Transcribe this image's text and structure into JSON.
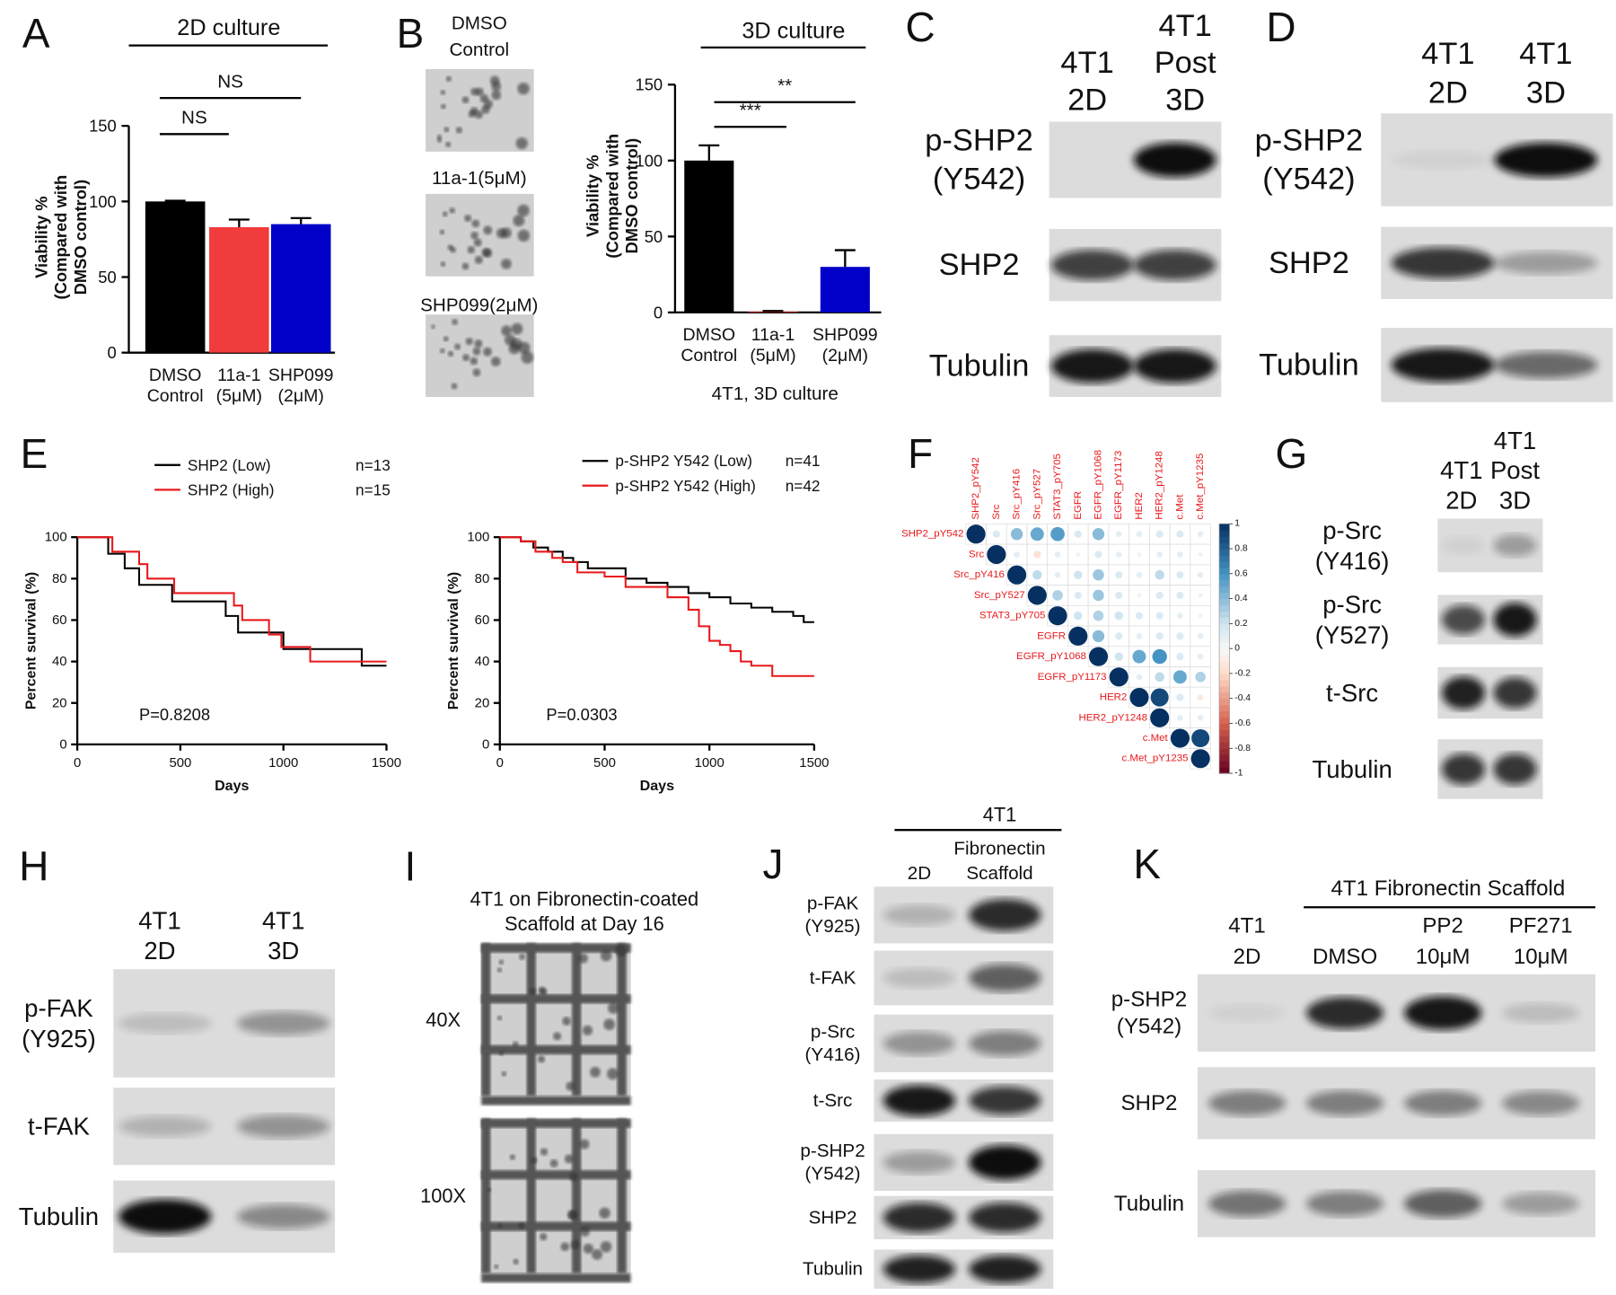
{
  "panels": {
    "A": {
      "letter": "A",
      "header": "2D culture",
      "chart_data": {
        "type": "bar",
        "y_label": [
          "Viability %",
          "(Compared with",
          "DMSO control)"
        ],
        "categories": [
          "DMSO Control",
          "11a-1 (5μM)",
          "SHP099 (2μM)"
        ],
        "values": [
          100,
          83,
          85
        ],
        "errors": [
          0.5,
          5,
          4
        ],
        "colors": [
          "#000000",
          "#f03c3c",
          "#0000c8"
        ],
        "ylim": [
          0,
          150
        ],
        "yticks": [
          0,
          50,
          100,
          150
        ],
        "annotations": [
          "NS",
          "NS"
        ]
      }
    },
    "B": {
      "letter": "B",
      "images": [
        "DMSO Control",
        "11a-1(5μM)",
        "SHP099(2μM)"
      ],
      "header": "3D culture",
      "chart_data": {
        "type": "bar",
        "y_label": [
          "Viability %",
          "(Compared with",
          "DMSO control)"
        ],
        "x_label": "4T1, 3D culture",
        "categories": [
          "DMSO Control",
          "11a-1 (5μM)",
          "SHP099 (2μM)"
        ],
        "values": [
          100,
          0.5,
          30
        ],
        "errors": [
          10,
          0.5,
          11
        ],
        "colors": [
          "#000000",
          "#f03c3c",
          "#0000c8"
        ],
        "ylim": [
          0,
          150
        ],
        "yticks": [
          0,
          50,
          100,
          150
        ],
        "annotations": [
          "***",
          "**"
        ]
      }
    },
    "C": {
      "letter": "C",
      "columns": [
        [
          "4T1",
          "2D"
        ],
        [
          "4T1",
          "Post",
          "3D"
        ]
      ],
      "rows": [
        [
          "p-SHP2",
          "(Y542)"
        ],
        [
          "SHP2"
        ],
        [
          "Tubulin"
        ]
      ]
    },
    "D": {
      "letter": "D",
      "columns": [
        [
          "4T1",
          "2D"
        ],
        [
          "4T1",
          "3D"
        ]
      ],
      "rows": [
        [
          "p-SHP2",
          "(Y542)"
        ],
        [
          "SHP2"
        ],
        [
          "Tubulin"
        ]
      ]
    },
    "E": {
      "letter": "E",
      "chart_data": [
        {
          "type": "survival",
          "y_label": "Percent survival (%)",
          "x_label": "Days",
          "p_value": "P=0.8208",
          "xlim": [
            0,
            1500
          ],
          "xticks": [
            0,
            500,
            1000,
            1500
          ],
          "ylim": [
            0,
            100
          ],
          "yticks": [
            0,
            20,
            40,
            60,
            80,
            100
          ],
          "series": [
            {
              "name": "SHP2 (Low)",
              "n": "n=13",
              "color": "#000000",
              "x": [
                0,
                150,
                230,
                300,
                460,
                720,
                780,
                1000,
                1380,
                1500
              ],
              "values": [
                100,
                92,
                85,
                77,
                69,
                62,
                54,
                46,
                38,
                38
              ]
            },
            {
              "name": "SHP2 (High)",
              "n": "n=15",
              "color": "#e8191c",
              "x": [
                0,
                170,
                300,
                340,
                470,
                760,
                800,
                930,
                990,
                1130,
                1500
              ],
              "values": [
                100,
                93,
                87,
                80,
                73,
                67,
                60,
                53,
                47,
                40,
                40
              ]
            }
          ]
        },
        {
          "type": "survival",
          "y_label": "Percent survival (%)",
          "x_label": "Days",
          "p_value": "P=0.0303",
          "xlim": [
            0,
            1500
          ],
          "xticks": [
            0,
            500,
            1000,
            1500
          ],
          "ylim": [
            0,
            100
          ],
          "yticks": [
            0,
            20,
            40,
            60,
            80,
            100
          ],
          "series": [
            {
              "name": "p-SHP2 Y542 (Low)",
              "n": "n=41",
              "color": "#000000",
              "x": [
                0,
                100,
                160,
                230,
                300,
                350,
                420,
                600,
                700,
                800,
                900,
                1000,
                1100,
                1200,
                1300,
                1400,
                1450,
                1500
              ],
              "values": [
                100,
                98,
                95,
                93,
                90,
                88,
                85,
                80,
                78,
                76,
                73,
                71,
                68,
                66,
                64,
                62,
                59,
                59
              ]
            },
            {
              "name": "p-SHP2 Y542 (High)",
              "n": "n=42",
              "color": "#e8191c",
              "x": [
                0,
                100,
                170,
                250,
                300,
                370,
                500,
                600,
                800,
                900,
                950,
                1000,
                1050,
                1100,
                1150,
                1200,
                1300,
                1500
              ],
              "values": [
                100,
                98,
                93,
                90,
                88,
                83,
                81,
                76,
                71,
                65,
                57,
                50,
                48,
                45,
                40,
                38,
                33,
                33
              ]
            }
          ]
        }
      ]
    },
    "F": {
      "letter": "F",
      "chart_data": {
        "type": "correlation",
        "variables": [
          "SHP2_pY542",
          "Src",
          "Src_pY416",
          "Src_pY527",
          "STAT3_pY705",
          "EGFR",
          "EGFR_pY1068",
          "EGFR_pY1173",
          "HER2",
          "HER2_pY1248",
          "c.Met",
          "c.Met_pY1235"
        ],
        "matrix": [
          [
            1,
            0.15,
            0.4,
            0.5,
            0.55,
            0.15,
            0.4,
            0.1,
            0.1,
            0.15,
            0.15,
            0.1
          ],
          [
            null,
            1,
            0.1,
            -0.15,
            0.1,
            0.05,
            0.15,
            0.1,
            0.05,
            0.1,
            0.1,
            0.05
          ],
          [
            null,
            null,
            1,
            0.25,
            0.1,
            0.2,
            0.35,
            0.15,
            0.1,
            0.25,
            0.15,
            0.1
          ],
          [
            null,
            null,
            null,
            1,
            0.3,
            0.15,
            0.35,
            0.15,
            0.05,
            0.15,
            0.15,
            0.05
          ],
          [
            null,
            null,
            null,
            null,
            1,
            0.2,
            0.3,
            0.2,
            0.15,
            0.15,
            0.1,
            0.05
          ],
          [
            null,
            null,
            null,
            null,
            null,
            1,
            0.4,
            0.15,
            0.1,
            0.15,
            0.15,
            0.1
          ],
          [
            null,
            null,
            null,
            null,
            null,
            null,
            1,
            0.2,
            0.5,
            0.6,
            0.15,
            0.1
          ],
          [
            null,
            null,
            null,
            null,
            null,
            null,
            null,
            1,
            0.1,
            0.25,
            0.5,
            0.3
          ],
          [
            null,
            null,
            null,
            null,
            null,
            null,
            null,
            null,
            1,
            0.9,
            0.15,
            -0.1
          ],
          [
            null,
            null,
            null,
            null,
            null,
            null,
            null,
            null,
            null,
            1,
            0.1,
            0.1
          ],
          [
            null,
            null,
            null,
            null,
            null,
            null,
            null,
            null,
            null,
            null,
            1,
            0.9
          ],
          [
            null,
            null,
            null,
            null,
            null,
            null,
            null,
            null,
            null,
            null,
            null,
            1
          ]
        ],
        "clim": [
          -1,
          1
        ],
        "colorbar_ticks": [
          1,
          0.8,
          0.6,
          0.4,
          0.2,
          0,
          -0.2,
          -0.4,
          -0.6,
          -0.8,
          -1
        ]
      }
    },
    "G": {
      "letter": "G",
      "columns": [
        [
          "4T1",
          "2D"
        ],
        [
          "4T1",
          "Post",
          "3D"
        ]
      ],
      "rows": [
        [
          "p-Src",
          "(Y416)"
        ],
        [
          "p-Src",
          "(Y527)"
        ],
        [
          "t-Src"
        ],
        [
          "Tubulin"
        ]
      ]
    },
    "H": {
      "letter": "H",
      "columns": [
        [
          "4T1",
          "2D"
        ],
        [
          "4T1",
          "3D"
        ]
      ],
      "rows": [
        [
          "p-FAK",
          "(Y925)"
        ],
        [
          "t-FAK"
        ],
        [
          "Tubulin"
        ]
      ]
    },
    "I": {
      "letter": "I",
      "title": [
        "4T1 on Fibronectin-coated",
        "Scaffold at Day 16"
      ],
      "images": [
        "40X",
        "100X"
      ]
    },
    "J": {
      "letter": "J",
      "header": "4T1",
      "columns": [
        [
          "2D"
        ],
        [
          "Fibronectin",
          "Scaffold"
        ]
      ],
      "rows": [
        [
          "p-FAK",
          "(Y925)"
        ],
        [
          "t-FAK"
        ],
        [
          "p-Src",
          "(Y416)"
        ],
        [
          "t-Src"
        ],
        [
          "p-SHP2",
          "(Y542)"
        ],
        [
          "SHP2"
        ],
        [
          "Tubulin"
        ]
      ]
    },
    "K": {
      "letter": "K",
      "header": "4T1 Fibronectin Scaffold",
      "columns": [
        [
          "4T1",
          "2D"
        ],
        [
          "DMSO"
        ],
        [
          "PP2",
          "10μM"
        ],
        [
          "PF271",
          "10μM"
        ]
      ],
      "rows": [
        [
          "p-SHP2",
          "(Y542)"
        ],
        [
          "SHP2"
        ],
        [
          "Tubulin"
        ]
      ]
    }
  }
}
